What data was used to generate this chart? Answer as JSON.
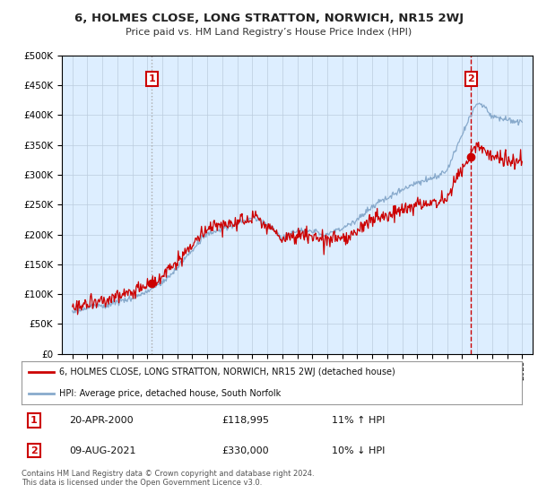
{
  "title": "6, HOLMES CLOSE, LONG STRATTON, NORWICH, NR15 2WJ",
  "subtitle": "Price paid vs. HM Land Registry’s House Price Index (HPI)",
  "hpi_label": "HPI: Average price, detached house, South Norfolk",
  "property_label": "6, HOLMES CLOSE, LONG STRATTON, NORWICH, NR15 2WJ (detached house)",
  "annotation1": {
    "num": "1",
    "date": "20-APR-2000",
    "price": "£118,995",
    "hpi": "11% ↑ HPI",
    "year": 2000.3
  },
  "annotation2": {
    "num": "2",
    "date": "09-AUG-2021",
    "price": "£330,000",
    "hpi": "10% ↓ HPI",
    "year": 2021.6
  },
  "property_color": "#cc0000",
  "hpi_color": "#88aacc",
  "sale1_vline_color": "#aaaaaa",
  "sale2_vline_color": "#cc0000",
  "marker_color": "#cc0000",
  "box_color": "#cc0000",
  "ylim": [
    0,
    500000
  ],
  "yticks": [
    0,
    50000,
    100000,
    150000,
    200000,
    250000,
    300000,
    350000,
    400000,
    450000,
    500000
  ],
  "sale1_year": 2000.3,
  "sale1_price": 118995,
  "sale2_year": 2021.6,
  "sale2_price": 330000,
  "footer": "Contains HM Land Registry data © Crown copyright and database right 2024.\nThis data is licensed under the Open Government Licence v3.0.",
  "background_color": "#ffffff",
  "plot_bg_color": "#ddeeff"
}
